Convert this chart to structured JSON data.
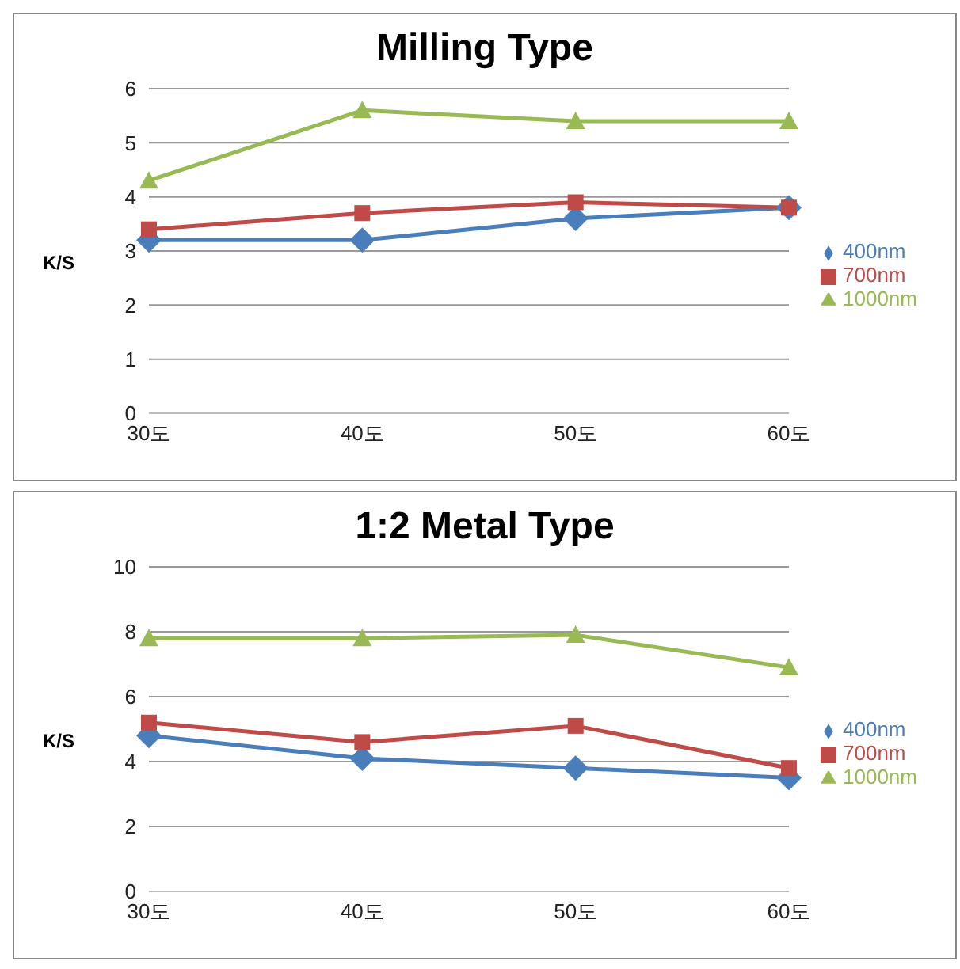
{
  "chart_data": [
    {
      "type": "line",
      "title": "Milling Type",
      "ylabel": "K/S",
      "categories": [
        "30도",
        "40도",
        "50도",
        "60도"
      ],
      "ylim": [
        0,
        6
      ],
      "yticks": [
        0,
        1,
        2,
        3,
        4,
        5,
        6
      ],
      "grid": "y",
      "legend": "right",
      "series": [
        {
          "name": "400nm",
          "color": "#4a7ebb",
          "marker": "diamond",
          "values": [
            3.2,
            3.2,
            3.6,
            3.8
          ]
        },
        {
          "name": "700nm",
          "color": "#be4b48",
          "marker": "square",
          "values": [
            3.4,
            3.7,
            3.9,
            3.8
          ]
        },
        {
          "name": "1000nm",
          "color": "#98b954",
          "marker": "triangle",
          "values": [
            4.3,
            5.6,
            5.4,
            5.4
          ]
        }
      ]
    },
    {
      "type": "line",
      "title": "1:2  Metal Type",
      "ylabel": "K/S",
      "categories": [
        "30도",
        "40도",
        "50도",
        "60도"
      ],
      "ylim": [
        0,
        10
      ],
      "yticks": [
        0,
        2,
        4,
        6,
        8,
        10
      ],
      "grid": "y",
      "legend": "right",
      "series": [
        {
          "name": "400nm",
          "color": "#4a7ebb",
          "marker": "diamond",
          "values": [
            4.8,
            4.1,
            3.8,
            3.5
          ]
        },
        {
          "name": "700nm",
          "color": "#be4b48",
          "marker": "square",
          "values": [
            5.2,
            4.6,
            5.1,
            3.8
          ]
        },
        {
          "name": "1000nm",
          "color": "#98b954",
          "marker": "triangle",
          "values": [
            7.8,
            7.8,
            7.9,
            6.9
          ]
        }
      ]
    }
  ]
}
